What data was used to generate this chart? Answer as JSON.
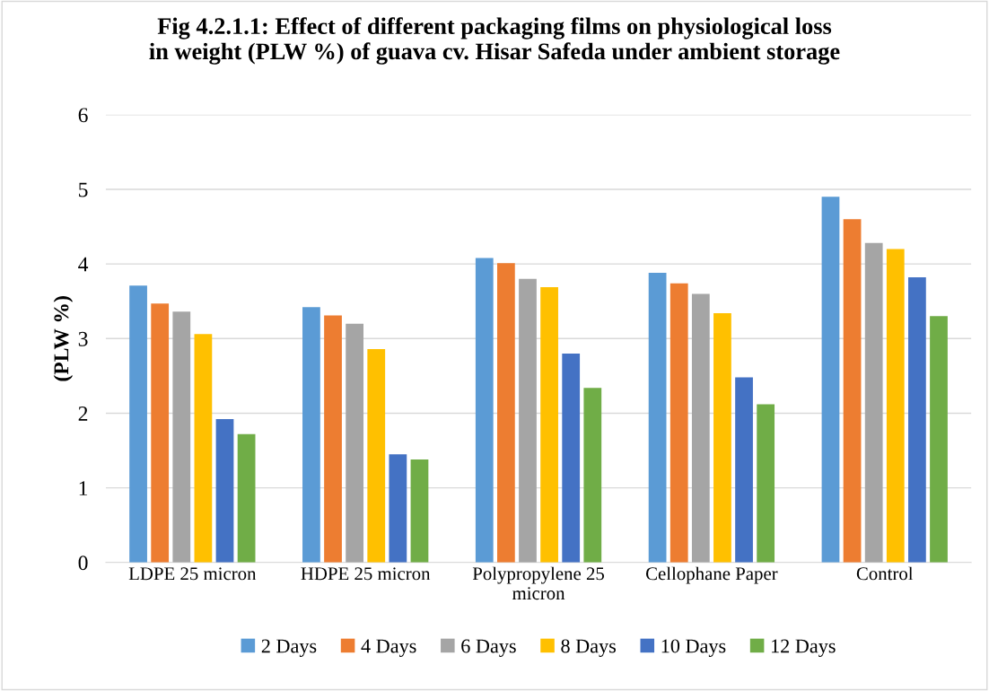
{
  "chart_data": {
    "type": "bar",
    "title": "Fig 4.2.1.1: Effect of different packaging films on physiological loss\nin weight (PLW %) of guava cv. Hisar Safeda under ambient storage",
    "ylabel": "(PLW %)",
    "categories": [
      "LDPE 25 micron",
      "HDPE 25 micron",
      "Polypropylene 25 micron",
      "Cellophane Paper",
      "Control"
    ],
    "series": [
      {
        "name": "2 Days",
        "color": "#5b9bd5",
        "values": [
          3.71,
          3.42,
          4.08,
          3.88,
          4.9
        ]
      },
      {
        "name": "4 Days",
        "color": "#ed7d31",
        "values": [
          3.47,
          3.31,
          4.01,
          3.74,
          4.6
        ]
      },
      {
        "name": "6 Days",
        "color": "#a5a5a5",
        "values": [
          3.36,
          3.2,
          3.8,
          3.6,
          4.28
        ]
      },
      {
        "name": "8 Days",
        "color": "#ffc000",
        "values": [
          3.06,
          2.86,
          3.69,
          3.34,
          4.2
        ]
      },
      {
        "name": "10 Days",
        "color": "#4472c4",
        "values": [
          1.92,
          1.45,
          2.8,
          2.48,
          3.82
        ]
      },
      {
        "name": "12 Days",
        "color": "#70ad47",
        "values": [
          1.72,
          1.38,
          2.34,
          2.12,
          3.3
        ]
      }
    ],
    "ylim": [
      0,
      6
    ],
    "yticks": [
      0,
      1,
      2,
      3,
      4,
      5,
      6
    ],
    "grid": "y",
    "legend": "bottom"
  }
}
